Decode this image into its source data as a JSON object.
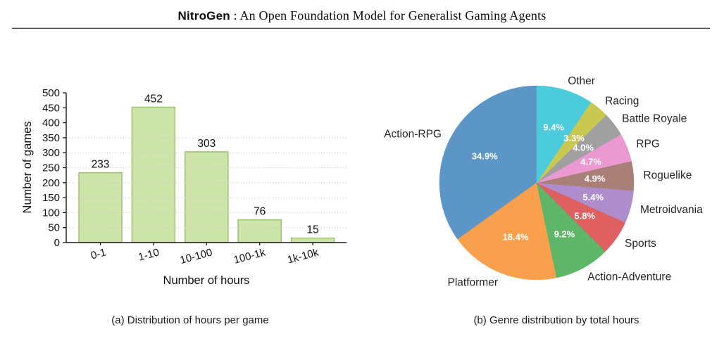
{
  "header": {
    "brand": "NitroGen",
    "title_rest": " : An Open Foundation Model for Generalist Gaming Agents"
  },
  "figure": {
    "caption_a": "(a) Distribution of hours per game",
    "caption_b": "(b) Genre distribution by total hours"
  },
  "chart_data": [
    {
      "id": "hours-histogram",
      "type": "bar",
      "title": "",
      "xlabel": "Number of hours",
      "ylabel": "Number of games",
      "categories": [
        "0-1",
        "1-10",
        "10-100",
        "100-1k",
        "1k-10k"
      ],
      "values": [
        233,
        452,
        303,
        76,
        15
      ],
      "bar_labels": [
        "233",
        "452",
        "303",
        "76",
        "15"
      ],
      "ylim": [
        0,
        500
      ],
      "ytick_step": 50,
      "gridline_values": [
        50,
        100,
        150,
        200,
        250,
        300,
        350
      ],
      "grid_style": "dotted-horizontal",
      "bar_fill": "#cde4aa",
      "bar_edge": "#9cc46c",
      "axis_color": "#1a1a1a"
    },
    {
      "id": "genre-pie",
      "type": "pie",
      "title": "",
      "start_angle": 90,
      "direction": "counterclockwise",
      "labels": [
        "Action-RPG",
        "Platformer",
        "Action-Adventure",
        "Sports",
        "Metroidvania",
        "Roguelike",
        "RPG",
        "Battle Royale",
        "Racing",
        "Other"
      ],
      "values": [
        34.9,
        18.4,
        9.2,
        5.8,
        5.4,
        4.9,
        4.7,
        4.0,
        3.3,
        9.4
      ],
      "pct_labels": [
        "34.9%",
        "18.4%",
        "9.2%",
        "5.8%",
        "5.4%",
        "4.9%",
        "4.7%",
        "4.0%",
        "3.3%",
        "9.4%"
      ],
      "colors": [
        "#5b96c6",
        "#f9a04e",
        "#5fb568",
        "#dd5f5f",
        "#af8dcd",
        "#a98078",
        "#ea99d1",
        "#a0a0a0",
        "#c9c952",
        "#4bcbdb"
      ],
      "pct_label_color": "#ffffff",
      "label_color": "#262626"
    }
  ]
}
